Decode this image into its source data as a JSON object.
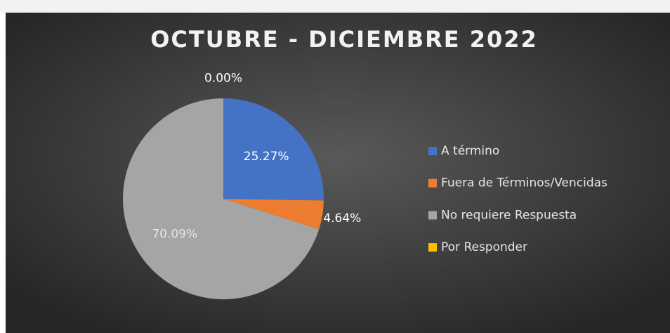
{
  "chart_data": {
    "type": "pie",
    "title": "OCTUBRE - DICIEMBRE 2022",
    "categories": [
      "A término",
      "Fuera de Términos/Vencidas",
      "No requiere Respuesta",
      "Por Responder"
    ],
    "values": [
      25.27,
      4.64,
      70.09,
      0.0
    ],
    "value_labels": [
      "25.27%",
      "4.64%",
      "70.09%",
      "0.00%"
    ],
    "colors": [
      "#4472c4",
      "#ed7d31",
      "#a5a5a5",
      "#ffc000"
    ],
    "legend": "right"
  }
}
